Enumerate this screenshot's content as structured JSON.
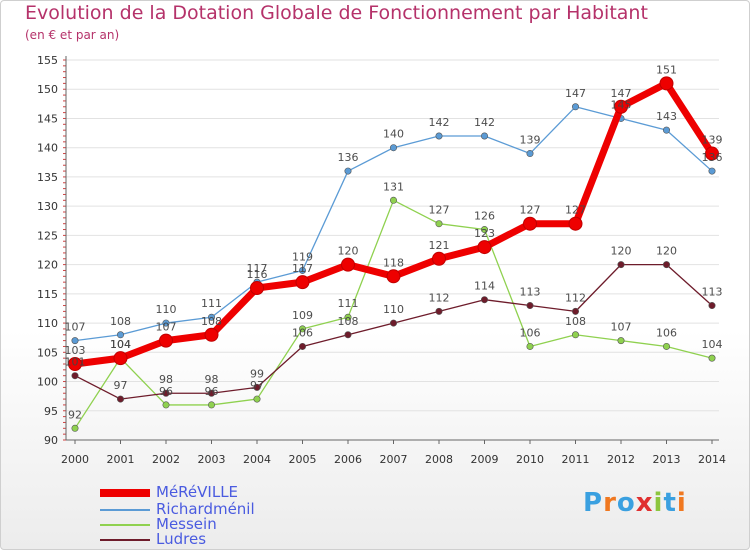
{
  "chart_data": {
    "type": "line",
    "title": "Evolution de la Dotation Globale de Fonctionnement par Habitant",
    "subtitle": "(en € et par an)",
    "x": [
      "2000",
      "2001",
      "2002",
      "2003",
      "2004",
      "2005",
      "2006",
      "2007",
      "2008",
      "2009",
      "2010",
      "2011",
      "2012",
      "2013",
      "2014"
    ],
    "ylim": [
      90,
      155
    ],
    "yticks": [
      90,
      95,
      100,
      105,
      110,
      115,
      120,
      125,
      130,
      135,
      140,
      145,
      150,
      155
    ],
    "series": [
      {
        "name": "Richardménil",
        "color": "#5b9bd5",
        "values": [
          107,
          108,
          110,
          111,
          117,
          119,
          136,
          140,
          142,
          142,
          139,
          147,
          145,
          143,
          136
        ]
      },
      {
        "name": "Messein",
        "color": "#8fd14f",
        "values": [
          92,
          104,
          96,
          96,
          97,
          109,
          111,
          131,
          127,
          126,
          106,
          108,
          107,
          106,
          104
        ]
      },
      {
        "name": "Ludres",
        "color": "#6e1c2b",
        "values": [
          101,
          97,
          98,
          98,
          99,
          106,
          108,
          110,
          112,
          114,
          113,
          112,
          120,
          120,
          113
        ]
      },
      {
        "name": "MéRéVILLE",
        "color": "#ee0000",
        "values": [
          103,
          104,
          107,
          108,
          116,
          117,
          120,
          118,
          121,
          123,
          127,
          127,
          147,
          151,
          139
        ]
      }
    ],
    "legend": [
      "MéRéVILLE",
      "Richardménil",
      "Messein",
      "Ludres"
    ]
  },
  "logo": {
    "text": "Proxiti",
    "colors": [
      "#3aa0e0",
      "#f07820",
      "#3aa0e0",
      "#e03030",
      "#8cc63f",
      "#3aa0e0",
      "#f07820"
    ]
  }
}
